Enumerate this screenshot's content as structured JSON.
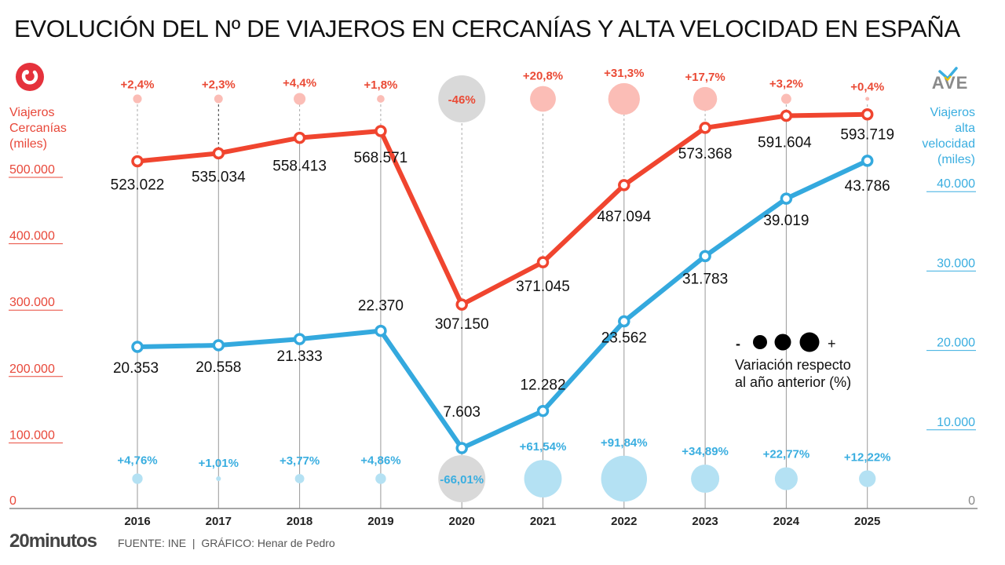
{
  "chart_data": {
    "type": "line",
    "title": "EVOLUCIÓN DEL Nº DE VIAJEROS EN CERCANÍAS Y ALTA VELOCIDAD EN ESPAÑA",
    "categories": [
      "2016",
      "2017",
      "2018",
      "2019",
      "2020",
      "2021",
      "2022",
      "2023",
      "2024",
      "2025"
    ],
    "series": [
      {
        "name": "Viajeros Cercanías (miles)",
        "axis": "left",
        "color": "#f0452f",
        "values": [
          523022,
          535034,
          558413,
          568571,
          307150,
          371045,
          487094,
          573368,
          591604,
          593719
        ],
        "value_labels": [
          "523.022",
          "535.034",
          "558.413",
          "568.571",
          "307.150",
          "371.045",
          "487.094",
          "573.368",
          "591.604",
          "593.719"
        ],
        "variation_pct": [
          2.4,
          2.3,
          4.4,
          1.8,
          -46,
          20.8,
          31.3,
          17.7,
          3.2,
          0.4
        ],
        "variation_labels": [
          "+2,4%",
          "+2,3%",
          "+4,4%",
          "+1,8%",
          "-46%",
          "+20,8%",
          "+31,3%",
          "+17,7%",
          "+3,2%",
          "+0,4%"
        ],
        "bubble_color": "#fbbdb6"
      },
      {
        "name": "Viajeros alta velocidad (miles)",
        "axis": "right",
        "color": "#34a9de",
        "values": [
          20353,
          20558,
          21333,
          22370,
          7603,
          12282,
          23562,
          31783,
          39019,
          43786
        ],
        "value_labels": [
          "20.353",
          "20.558",
          "21.333",
          "22.370",
          "7.603",
          "12.282",
          "23.562",
          "31.783",
          "39.019",
          "43.786"
        ],
        "variation_pct": [
          4.76,
          1.01,
          3.77,
          4.86,
          -66.01,
          61.54,
          91.84,
          34.89,
          22.77,
          12.22
        ],
        "variation_labels": [
          "+4,76%",
          "+1,01%",
          "+3,77%",
          "+4,86%",
          "-66,01%",
          "+61,54%",
          "+91,84%",
          "+34,89%",
          "+22,77%",
          "+12,22%"
        ],
        "bubble_color": "#b4e1f3"
      }
    ],
    "negative_bubble_color": "#d9d9d9",
    "left_axis": {
      "label_lines": [
        "Viajeros",
        "Cercanías",
        "(miles)"
      ],
      "ticks": [
        "0",
        "100.000",
        "200.000",
        "300.000",
        "400.000",
        "500.000"
      ],
      "tick_values": [
        0,
        100000,
        200000,
        300000,
        400000,
        500000
      ],
      "ylim": [
        0,
        600000
      ]
    },
    "right_axis": {
      "label_lines": [
        "Viajeros",
        "alta",
        "velocidad",
        "(miles)"
      ],
      "ticks": [
        "0",
        "10.000",
        "20.000",
        "30.000",
        "40.000"
      ],
      "tick_values": [
        0,
        10000,
        20000,
        30000,
        40000
      ],
      "ylim": [
        0,
        50000
      ]
    },
    "legend": {
      "minus": "-",
      "plus": "+",
      "text_lines": [
        "Variación respecto",
        "al año anterior (%)"
      ],
      "placement": "center-right"
    }
  },
  "logos": {
    "left": "cercanias-logo",
    "right_text": "AVE"
  },
  "footer": {
    "brand": "20minutos",
    "source": "FUENTE: INE  |  GRÁFICO: Henar de Pedro"
  }
}
